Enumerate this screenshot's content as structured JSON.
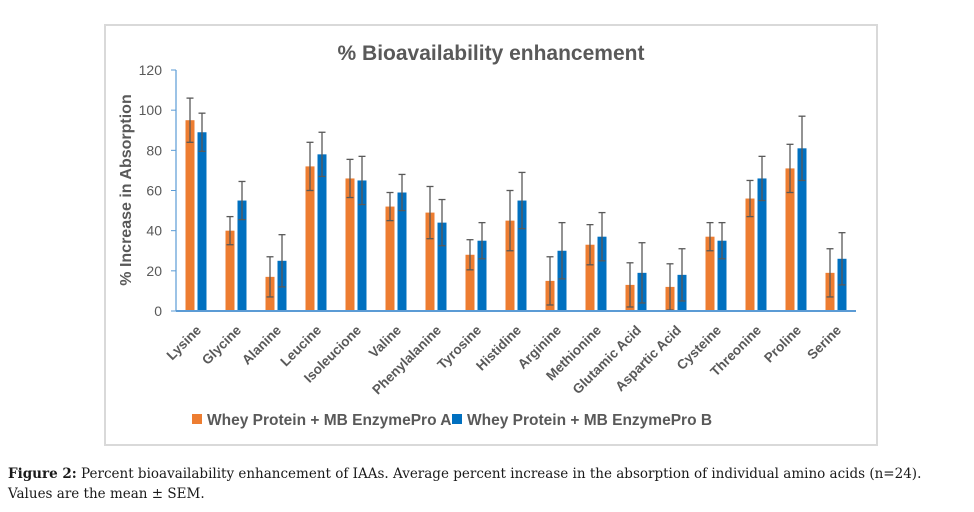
{
  "chart_data": {
    "type": "bar",
    "title": "% Bioavailability enhancement",
    "xlabel": "",
    "ylabel": "% Increase in Absorption",
    "ylim": [
      0,
      120
    ],
    "yticks": [
      0,
      20,
      40,
      60,
      80,
      100,
      120
    ],
    "grid": false,
    "legend": "bottom",
    "categories": [
      "Lysine",
      "Glycine",
      "Alanine",
      "Leucine",
      "Isoleucione",
      "Valine",
      "Phenylalanine",
      "Tyrosine",
      "Histidine",
      "Arginine",
      "Methionine",
      "Glutamic Acid",
      "Aspartic Acid",
      "Cysteine",
      "Threonine",
      "Proline",
      "Serine"
    ],
    "series": [
      {
        "name": "Whey Protein + MB EnzymePro A",
        "color": "#ed7d31",
        "values": [
          95,
          40,
          17,
          72,
          66,
          52,
          49,
          28,
          45,
          15,
          33,
          13,
          12,
          37,
          56,
          71,
          19
        ],
        "errors": [
          11,
          7,
          10,
          12,
          9.5,
          7,
          13,
          7.5,
          15,
          12,
          10,
          11,
          11.5,
          7,
          9,
          12,
          12
        ]
      },
      {
        "name": "Whey Protein + MB EnzymePro B",
        "color": "#0070c0",
        "values": [
          89,
          55,
          25,
          78,
          65,
          59,
          44,
          35,
          55,
          30,
          37,
          19,
          18,
          35,
          66,
          81,
          26
        ],
        "errors": [
          9.5,
          9.5,
          13,
          11,
          12,
          9,
          11.5,
          9,
          14,
          14,
          12,
          15,
          13,
          9,
          11,
          16,
          13
        ]
      }
    ]
  },
  "caption": {
    "label": "Figure 2:",
    "text": "Percent bioavailability enhancement of IAAs. Average percent increase in the absorption of individual amino acids (n=24). Values are the mean ± SEM."
  }
}
